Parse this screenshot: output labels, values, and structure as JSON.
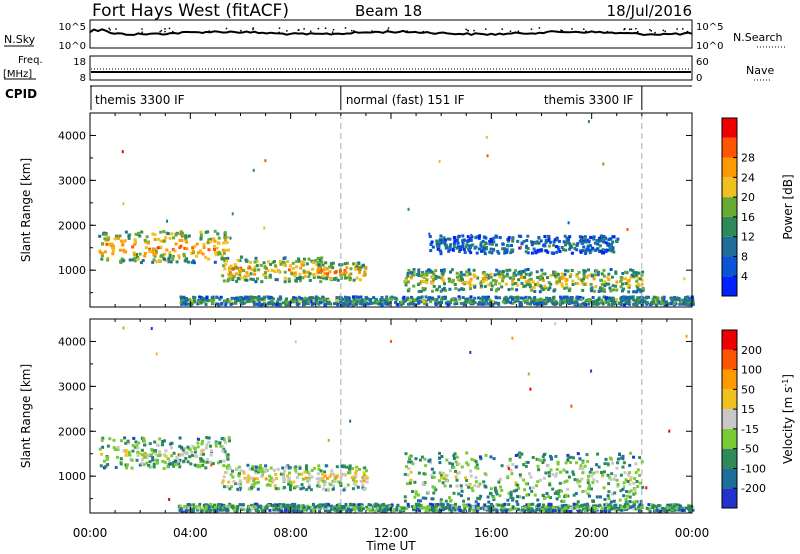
{
  "header": {
    "title": "Fort Hays West (fitACF)",
    "beam": "Beam 18",
    "date": "18/Jul/2016"
  },
  "noise_panel": {
    "left_label": "N.Sky",
    "right_label": "N.Search",
    "left_ticks": [
      "10^5",
      "10^0"
    ],
    "right_ticks": [
      "10^5",
      "10^0"
    ]
  },
  "freq_panel": {
    "left_label": "Freq.",
    "left_unit": "[MHz]",
    "right_label": "Nave",
    "left_ticks": [
      "18",
      "8"
    ],
    "right_ticks": [
      "60",
      "0"
    ]
  },
  "cpid_panel": {
    "label": "CPID",
    "segments": [
      {
        "text": "themis 3300 IF",
        "start_hour": 0,
        "end_hour": 10
      },
      {
        "text": "normal (fast) 151 IF",
        "start_hour": 10,
        "end_hour": 22
      },
      {
        "text": "themis 3300 IF",
        "start_hour": 22,
        "end_hour": 24
      }
    ]
  },
  "time_axis": {
    "label": "Time UT",
    "ticks": [
      "00:00",
      "04:00",
      "08:00",
      "12:00",
      "16:00",
      "20:00",
      "00:00"
    ]
  },
  "chart_data": [
    {
      "type": "heatmap",
      "name": "power",
      "ylabel": "Slant Range [km]",
      "x_range_hours": [
        0,
        24
      ],
      "ylim": [
        180,
        4500
      ],
      "yticks": [
        1000,
        2000,
        3000,
        4000
      ],
      "colorbar": {
        "label": "Power [dB]",
        "tick_labels": [
          "4",
          "8",
          "12",
          "16",
          "20",
          "24",
          "28"
        ],
        "colors": [
          "#0022ff",
          "#0a55d6",
          "#1f6f9a",
          "#2e8b57",
          "#66aa33",
          "#f0c020",
          "#ff9900",
          "#ff5500",
          "#ee0000"
        ]
      },
      "regions": [
        {
          "t0": 0.3,
          "t1": 5.5,
          "r_center": 1550,
          "r_width": 700,
          "level": 0.75
        },
        {
          "t0": 5.2,
          "t1": 9.2,
          "r_center": 1050,
          "r_width": 550,
          "level": 0.7
        },
        {
          "t0": 9.0,
          "t1": 11.0,
          "r_center": 1000,
          "r_width": 400,
          "level": 0.75
        },
        {
          "t0": 12.5,
          "t1": 22.0,
          "r_center": 800,
          "r_width": 500,
          "level": 0.6
        },
        {
          "t0": 13.5,
          "t1": 21.0,
          "r_center": 1600,
          "r_width": 400,
          "level": 0.3
        },
        {
          "t0": 3.5,
          "t1": 24.0,
          "r_center": 350,
          "r_width": 180,
          "level": 0.45
        }
      ]
    },
    {
      "type": "heatmap",
      "name": "velocity",
      "ylabel": "Slant Range [km]",
      "x_range_hours": [
        0,
        24
      ],
      "ylim": [
        180,
        4500
      ],
      "yticks": [
        1000,
        2000,
        3000,
        4000
      ],
      "colorbar": {
        "label": "Velocity [m s^-1]",
        "tick_labels": [
          "200",
          "100",
          "50",
          "15",
          "-15",
          "-50",
          "-100",
          "-200"
        ],
        "colors": [
          "#2233cc",
          "#1e6e9a",
          "#2e8b57",
          "#77cc33",
          "#c8c8c8",
          "#f0c020",
          "#ff9900",
          "#ff5500",
          "#ee0000"
        ]
      },
      "regions": [
        {
          "t0": 0.3,
          "t1": 5.5,
          "r_center": 1550,
          "r_width": 700,
          "level": 0.45
        },
        {
          "t0": 5.2,
          "t1": 11.0,
          "r_center": 1000,
          "r_width": 550,
          "level": 0.58
        },
        {
          "t0": 12.5,
          "t1": 22.0,
          "r_center": 1000,
          "r_width": 1100,
          "level": 0.45
        },
        {
          "t0": 3.5,
          "t1": 24.0,
          "r_center": 330,
          "r_width": 160,
          "level": 0.35
        }
      ]
    }
  ]
}
